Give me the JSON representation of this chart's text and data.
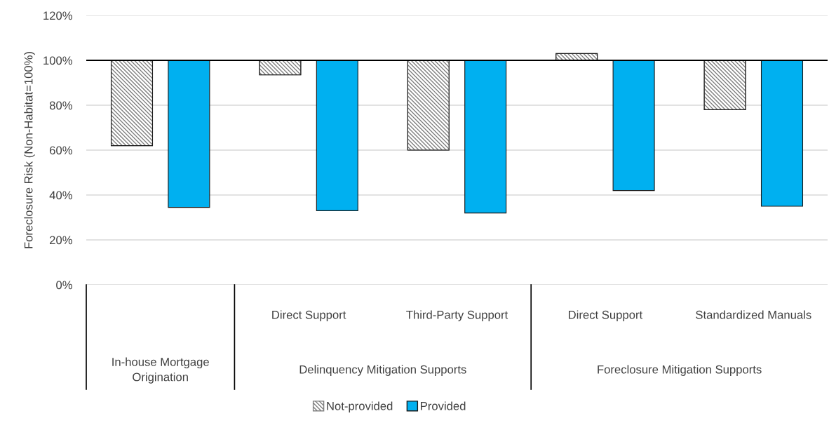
{
  "chart_data": {
    "type": "bar",
    "ylabel": "Foreclosure Risk (Non-Habitat=100%)",
    "categories": [
      null,
      "Direct Support",
      "Third-Party Support",
      "Direct Support",
      "Standardized Manuals"
    ],
    "series": [
      {
        "name": "Not-provided",
        "color": "#7f7f7f",
        "base": [
          100,
          100,
          100,
          100,
          100
        ],
        "values": [
          -38,
          -6.5,
          -40,
          3,
          -22
        ]
      },
      {
        "name": "Provided",
        "color": "#00b0f0",
        "base": [
          100,
          100,
          100,
          100,
          100
        ],
        "values": [
          -65.5,
          -67,
          -68,
          -58,
          -65
        ]
      }
    ],
    "annotations": [
      "In-house Mortgage Origination",
      "Delinquency Mitigation Supports",
      "Foreclosure Mitigation Supports"
    ],
    "ref_lines": [
      {
        "axis": "y",
        "value": 100,
        "color": "#000000"
      }
    ],
    "ylim": [
      0,
      120
    ],
    "yticks": [
      {
        "value": 0,
        "label": "0%"
      },
      {
        "value": 20,
        "label": "20%"
      },
      {
        "value": 40,
        "label": "40%"
      },
      {
        "value": 60,
        "label": "60%"
      },
      {
        "value": 80,
        "label": "80%"
      },
      {
        "value": 100,
        "label": "100%"
      },
      {
        "value": 120,
        "label": "120%"
      }
    ],
    "grid": "y",
    "legend": "bottom"
  }
}
